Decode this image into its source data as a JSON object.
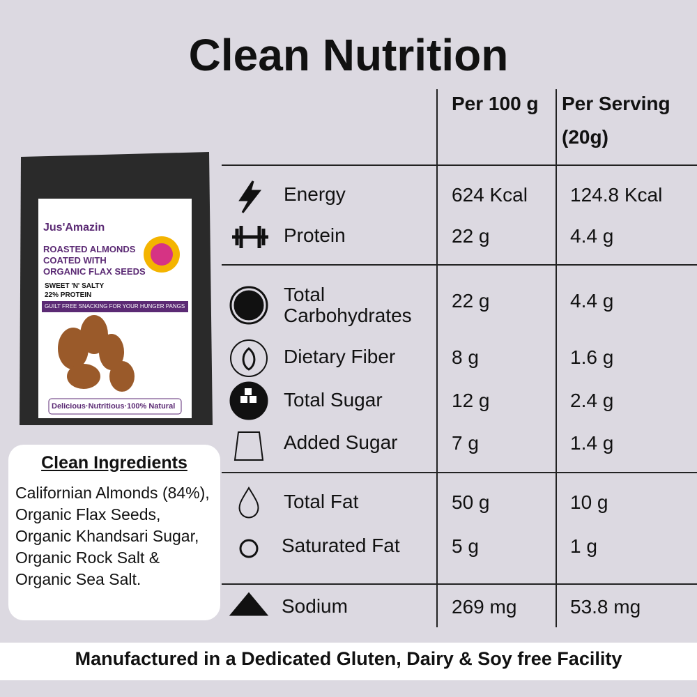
{
  "title": "Clean Nutrition",
  "table": {
    "headers": [
      "Per 100 g",
      "Per Serving",
      "(20g)"
    ],
    "rows": [
      [
        "Energy",
        "624 Kcal",
        "124.8 Kcal"
      ],
      [
        "Protein",
        "22 g",
        "4.4 g"
      ],
      [
        "Total Carbohydrates",
        "22 g",
        "4.4 g"
      ],
      [
        "Dietary Fiber",
        "8 g",
        "1.6 g"
      ],
      [
        "Total Sugar",
        "12 g",
        "2.4 g"
      ],
      [
        "Added Sugar",
        "7 g",
        "1.4 g"
      ],
      [
        "Total Fat",
        "50 g",
        "10 g"
      ],
      [
        "Saturated Fat",
        "5 g",
        "1 g"
      ],
      [
        "Sodium",
        "269 mg",
        "53.8 mg"
      ]
    ]
  },
  "package": {
    "brand": "Jus'Amazin",
    "name": "ROASTED ALMONDS COATED WITH ORGANIC FLAX SEEDS",
    "flavor": "SWEET 'N' SALTY",
    "protein": "22% PROTEIN",
    "tagline": "GUILT FREE SNACKING FOR YOUR HUNGER PANGS",
    "footer": "Delicious·Nutritious·100% Natural"
  },
  "ingredients": {
    "title": "Clean Ingredients",
    "text": "Californian Almonds (84%), Organic Flax Seeds, Organic Khandsari Sugar, Organic Rock Salt & Organic Sea Salt."
  },
  "footer": "Manufactured in a Dedicated Gluten, Dairy & Soy free Facility"
}
